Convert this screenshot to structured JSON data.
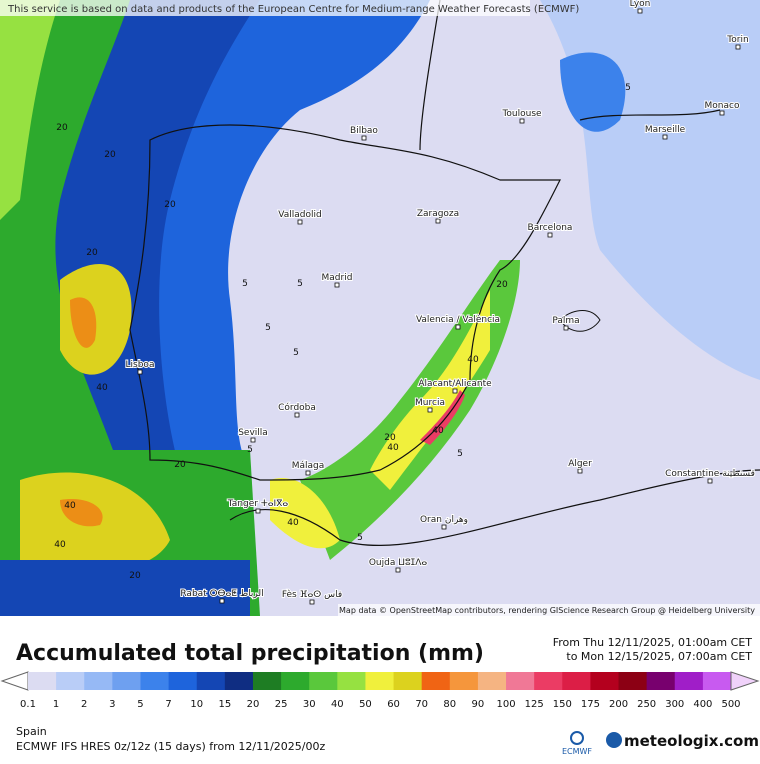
{
  "banner": "This service is based on data and products of the European Centre for Medium-range Weather Forecasts (ECMWF)",
  "cities": [
    "Lyon",
    "Torin",
    "Monaco",
    "Bilbao",
    "Toulouse",
    "Marseille",
    "Valladolid",
    "Zaragoza",
    "Barcelona",
    "Madrid",
    "Valencia / València",
    "Palma",
    "Lisboa",
    "Alacant/Alicante",
    "Murcia",
    "Córdoba",
    "Sevilla",
    "Málaga",
    "Alger",
    "Constantine قسنطينة",
    "Tanger ⵜⴰⵏⴳⴰ",
    "Oran وهران",
    "Oujda ⵡⵓⵊⴷⴰ",
    "Rabat ⵔⴱⴰⵟ الرباط",
    "Fès ⴼⴰⵙ فاس"
  ],
  "contour_labels": [
    "20",
    "20",
    "20",
    "20",
    "20",
    "40",
    "40",
    "40",
    "20",
    "5",
    "5",
    "5",
    "5",
    "5",
    "20",
    "40",
    "40",
    "40",
    "5",
    "5",
    "20",
    "40",
    "5"
  ],
  "attribution": "Map data © OpenStreetMap contributors, rendering GIScience Research Group @ Heidelberg University",
  "title": "Accumulated total precipitation (mm)",
  "period": [
    "From Thu 12/11/2025, 01:00am CET",
    "to Mon 12/15/2025, 07:00am CET"
  ],
  "legend": {
    "labels": [
      "0.1",
      "1",
      "2",
      "3",
      "5",
      "7",
      "10",
      "15",
      "20",
      "25",
      "30",
      "40",
      "50",
      "60",
      "70",
      "80",
      "90",
      "100",
      "125",
      "150",
      "175",
      "200",
      "250",
      "300",
      "400",
      "500"
    ],
    "colors": [
      "#ffffff",
      "#dcdcf2",
      "#b9cdf7",
      "#96b9f5",
      "#6ea0f0",
      "#3c82eb",
      "#1e64dc",
      "#1446b4",
      "#0f2d82",
      "#1e7d23",
      "#2daa2d",
      "#5ac83c",
      "#96e141",
      "#f0f03c",
      "#dcd21e",
      "#f06414",
      "#f5963c",
      "#f5b482",
      "#f07896",
      "#eb3c64",
      "#dc1e46",
      "#b4001e",
      "#8c0014",
      "#78006e",
      "#a01ec8",
      "#c85af0",
      "#e6a0f5",
      "#f0d2fa"
    ]
  },
  "region": "Spain",
  "model": "ECMWF IFS HRES 0z/12z (15 days) from 12/11/2025/00z",
  "ecmwf_logo": "ECMWF",
  "brand": "meteologix.com"
}
